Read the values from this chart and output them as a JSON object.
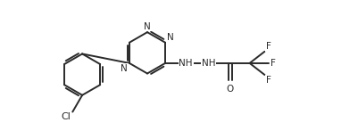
{
  "bg_color": "#ffffff",
  "line_color": "#2a2a2a",
  "text_color": "#2a2a2a",
  "bond_lw": 1.4,
  "font_size": 7.5,
  "figsize": [
    4.01,
    1.56
  ],
  "dpi": 100,
  "xlim": [
    0,
    10.5
  ],
  "ylim": [
    0,
    4.1
  ]
}
